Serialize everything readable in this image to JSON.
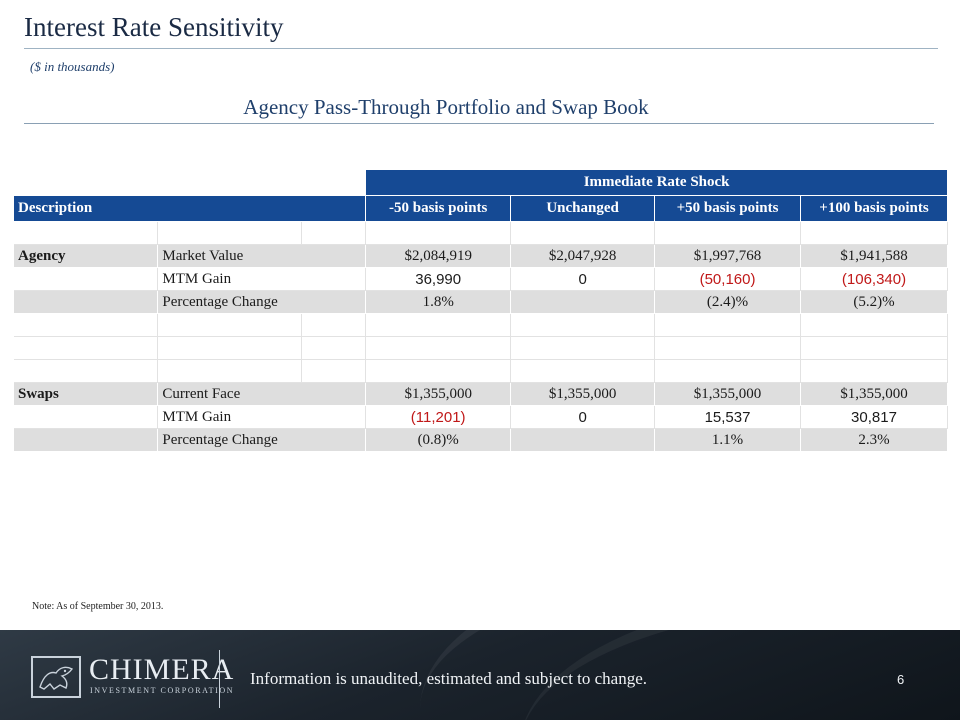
{
  "slide": {
    "title": "Interest Rate Sensitivity",
    "subtitle": "($ in thousands)",
    "section_title": "Agency Pass-Through Portfolio and Swap Book",
    "note": "Note: As of September 30, 2013.",
    "page_number": "6"
  },
  "table": {
    "super_header": "Immediate Rate Shock",
    "columns": [
      "Description",
      "-50 basis points",
      "Unchanged",
      "+50 basis points",
      "+100 basis points"
    ],
    "agency": {
      "label": "Agency",
      "rows": [
        {
          "metric": "Market Value",
          "values": [
            "$2,084,919",
            "$2,047,928",
            "$1,997,768",
            "$1,941,588"
          ]
        },
        {
          "metric": "MTM Gain",
          "values": [
            "36,990",
            "0",
            "(50,160)",
            "(106,340)"
          ]
        },
        {
          "metric": "Percentage Change",
          "values": [
            "1.8%",
            "",
            "(2.4)%",
            "(5.2)%"
          ]
        }
      ]
    },
    "swaps": {
      "label": "Swaps",
      "rows": [
        {
          "metric": "Current Face",
          "values": [
            "$1,355,000",
            "$1,355,000",
            "$1,355,000",
            "$1,355,000"
          ]
        },
        {
          "metric": "MTM Gain",
          "values": [
            "(11,201)",
            "0",
            "15,537",
            "30,817"
          ]
        },
        {
          "metric": "Percentage Change",
          "values": [
            "(0.8)%",
            "",
            "1.1%",
            "2.3%"
          ]
        }
      ]
    }
  },
  "footer": {
    "company_name": "CHIMERA",
    "company_sub": "INVESTMENT CORPORATION",
    "disclaimer": "Information is unaudited, estimated and subject to change.",
    "logo_icon": "chimera-emblem-icon"
  },
  "colors": {
    "header_blue": "#154a94",
    "title_navy": "#1a2a44",
    "negative_red": "#c01818",
    "row_gray": "#dedede"
  }
}
